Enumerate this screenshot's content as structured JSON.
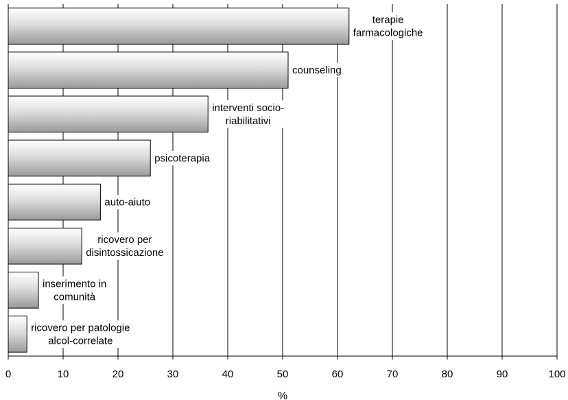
{
  "chart_data": {
    "type": "bar",
    "orientation": "horizontal",
    "categories": [
      [
        "terapie",
        "farmacologiche"
      ],
      [
        "counseling"
      ],
      [
        "interventi socio-",
        "riabilitativi"
      ],
      [
        "psicoterapia"
      ],
      [
        "auto-aiuto"
      ],
      [
        "ricovero per",
        "disintossicazione"
      ],
      [
        "inserimento in",
        "comunità"
      ],
      [
        "ricovero per patologie",
        "alcol-correlate"
      ]
    ],
    "values": [
      62.1,
      51.0,
      36.4,
      25.9,
      16.8,
      13.4,
      5.5,
      3.4
    ],
    "title": "",
    "xlabel": "%",
    "ylabel": "",
    "xlim": [
      0,
      100
    ],
    "xticks": [
      "0",
      "10",
      "20",
      "30",
      "40",
      "50",
      "60",
      "70",
      "80",
      "90",
      "100"
    ],
    "grid": "vertical",
    "legend": "none",
    "colors": {
      "bar_light": "#ffffff",
      "bar_dark": "#9a9a9a",
      "stroke": "#000000",
      "grid": "#000000"
    }
  }
}
